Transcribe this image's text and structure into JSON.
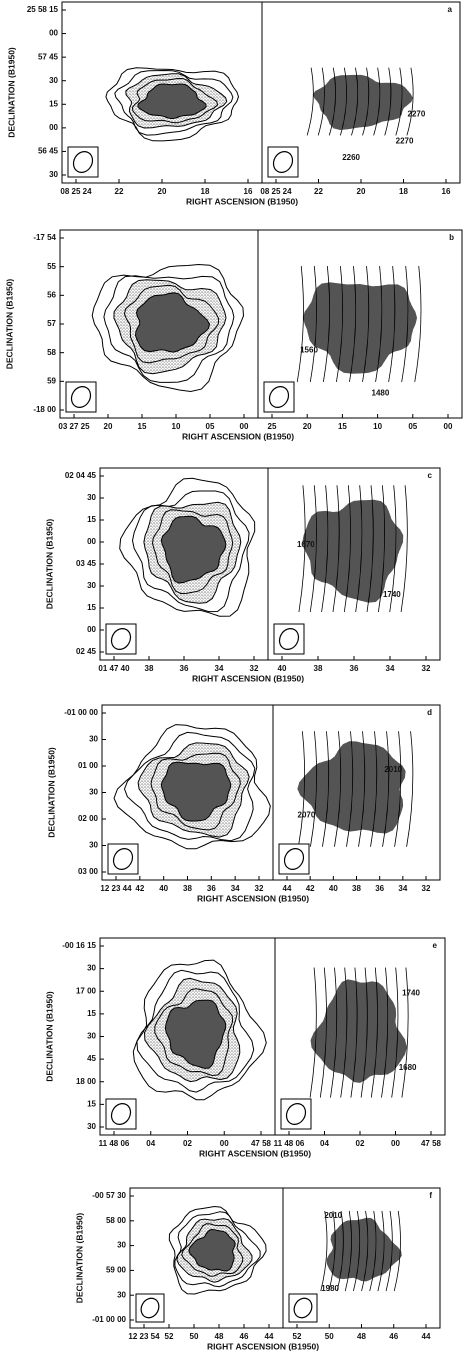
{
  "panels": [
    {
      "letter": "a",
      "y_label": "DECLINATION (B1950)",
      "x_label": "RIGHT ASCENSION (B1950)",
      "yticks": [
        "25 58 15",
        "00",
        "57 45",
        "30",
        "15",
        "00",
        "56 45",
        "30"
      ],
      "xticks_left": [
        "08 25 24",
        "22",
        "20",
        "18",
        "16"
      ],
      "xticks_right": [
        "08 25 24",
        "22",
        "20",
        "18",
        "16"
      ],
      "contour_labels": [
        "2270",
        "2260",
        "2270"
      ]
    },
    {
      "letter": "b",
      "y_label": "DECLINATION (B1950)",
      "x_label": "RIGHT ASCENSION (B1950)",
      "yticks": [
        "-17 54",
        "55",
        "56",
        "57",
        "58",
        "59",
        "-18 00"
      ],
      "xticks_left": [
        "03 27 25",
        "20",
        "15",
        "10",
        "05",
        "00"
      ],
      "xticks_right": [
        "25",
        "20",
        "15",
        "10",
        "05",
        "00"
      ],
      "contour_labels": [
        "1560",
        "1480"
      ]
    },
    {
      "letter": "c",
      "y_label": "DECLINATION (B1950)",
      "x_label": "RIGHT ASCENSION (B1950)",
      "yticks": [
        "02 04 45",
        "30",
        "15",
        "00",
        "03 45",
        "30",
        "15",
        "00",
        "02 45"
      ],
      "xticks_left": [
        "01 47 40",
        "38",
        "36",
        "34",
        "32"
      ],
      "xticks_right": [
        "40",
        "38",
        "36",
        "34",
        "32"
      ],
      "contour_labels": [
        "1670",
        "1740"
      ]
    },
    {
      "letter": "d",
      "y_label": "DECLINATION (B1950)",
      "x_label": "RIGHT ASCENSION (B1950)",
      "yticks": [
        "-01 00 00",
        "30",
        "01 00",
        "30",
        "02 00",
        "30",
        "03 00"
      ],
      "xticks_left": [
        "12 23 44",
        "42",
        "40",
        "38",
        "36",
        "34",
        "32"
      ],
      "xticks_right": [
        "44",
        "42",
        "40",
        "38",
        "36",
        "34",
        "32"
      ],
      "contour_labels": [
        "2010",
        "2070"
      ]
    },
    {
      "letter": "e",
      "y_label": "DECLINATION (B1950)",
      "x_label": "RIGHT ASCENSION (B1950)",
      "yticks": [
        "-00 16 15",
        "30",
        "17 00",
        "15",
        "30",
        "45",
        "18 00",
        "15",
        "30"
      ],
      "xticks_left": [
        "11 48 06",
        "04",
        "02",
        "00",
        "47 58"
      ],
      "xticks_right": [
        "11 48 06",
        "04",
        "02",
        "00",
        "47 58"
      ],
      "contour_labels": [
        "1740",
        "1680"
      ]
    },
    {
      "letter": "f",
      "y_label": "DECLINATION (B1950)",
      "x_label": "RIGHT ASCENSION (B1950)",
      "yticks": [
        "-00 57 30",
        "58 00",
        "30",
        "59 00",
        "30",
        "-01 00 00"
      ],
      "xticks_left": [
        "12 23 54",
        "52",
        "50",
        "48",
        "46",
        "44"
      ],
      "xticks_right": [
        "52",
        "50",
        "48",
        "46",
        "44"
      ],
      "contour_labels": [
        "2010",
        "1980"
      ]
    }
  ]
}
